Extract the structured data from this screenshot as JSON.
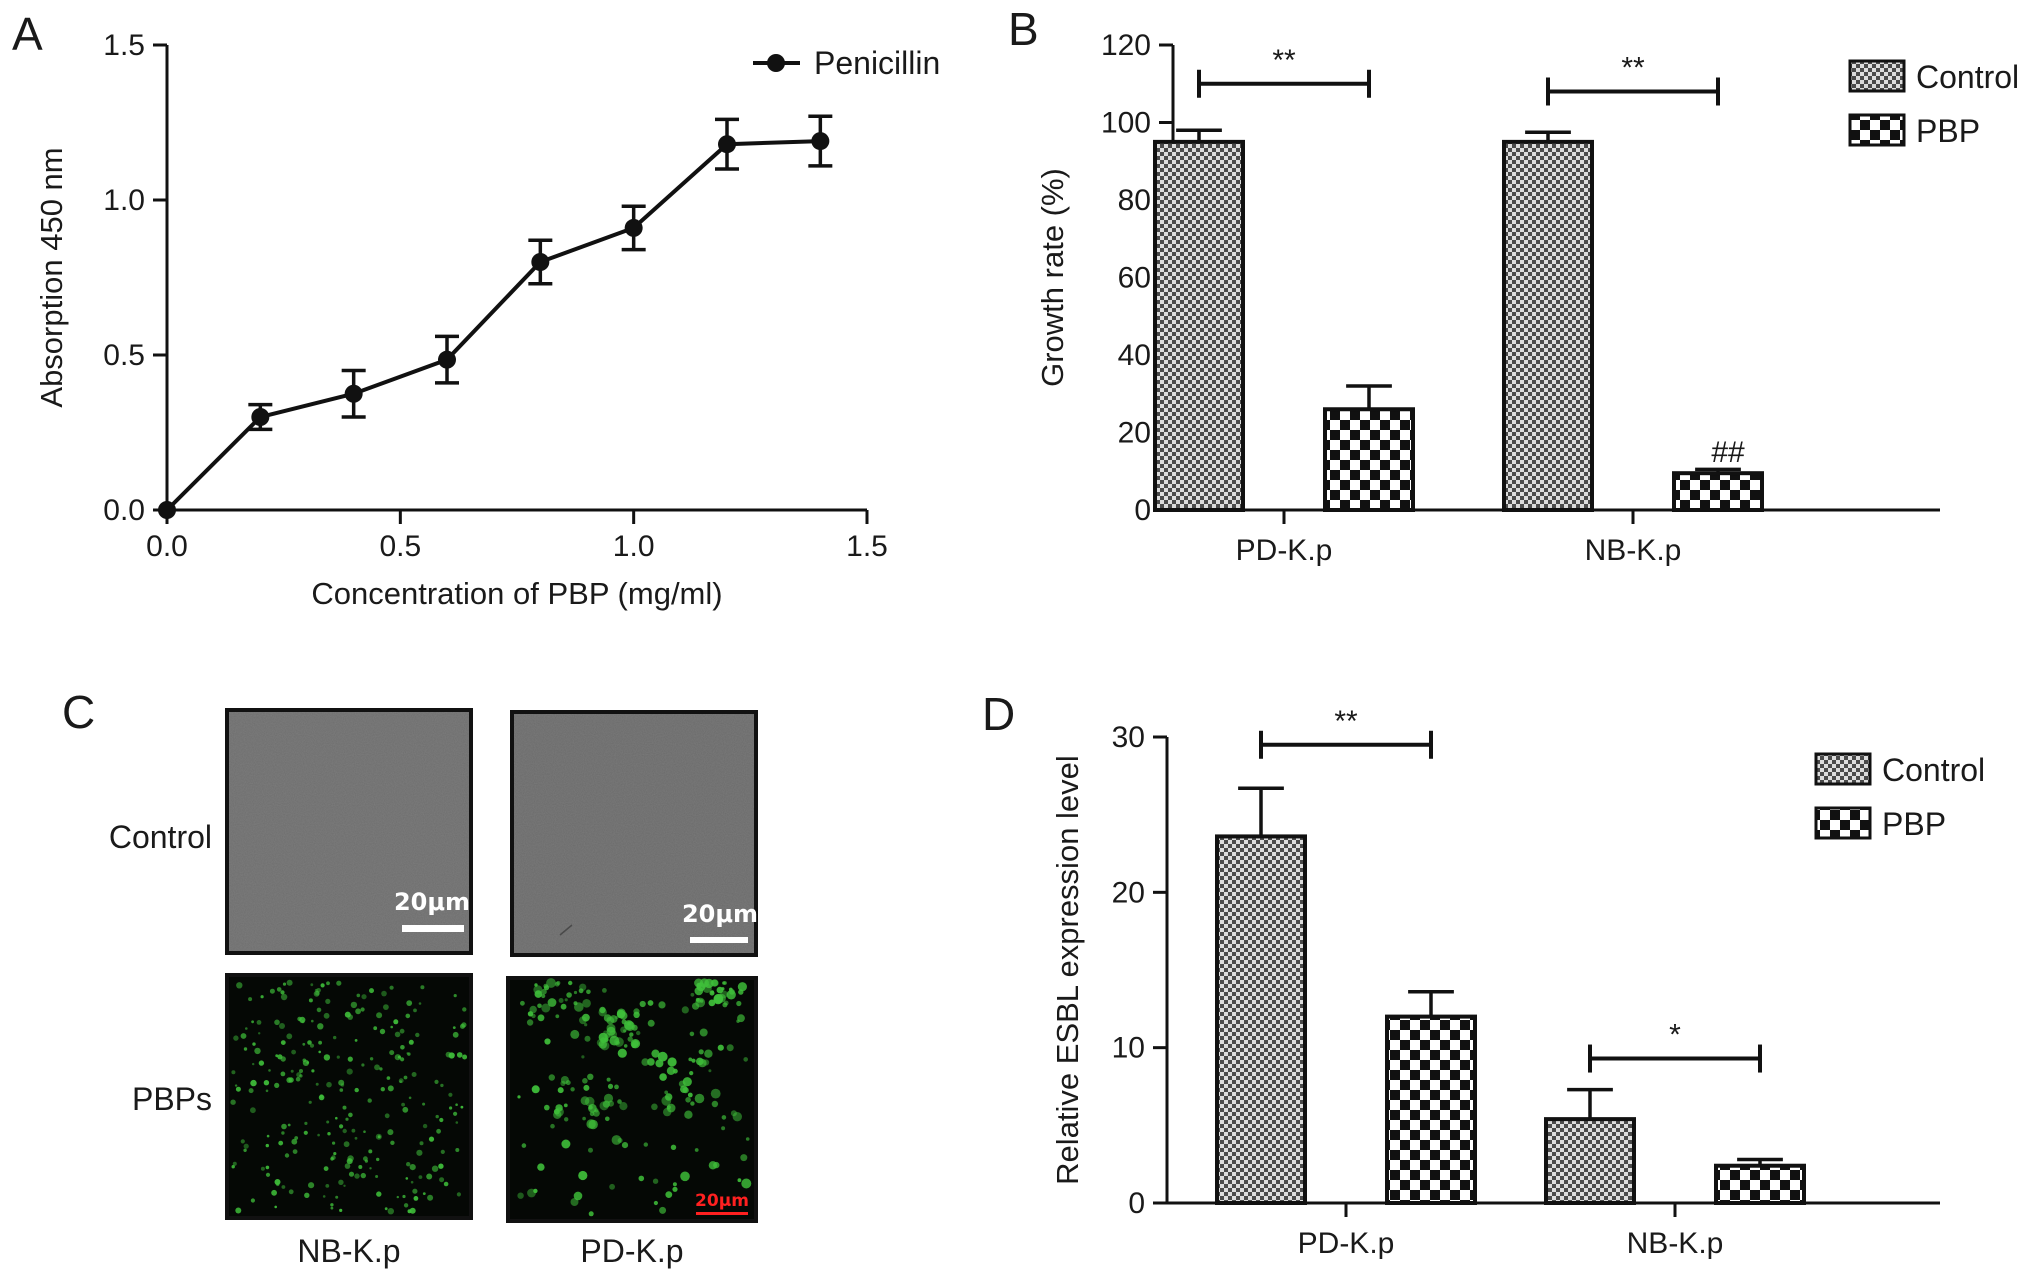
{
  "panel_letters": {
    "a": "A",
    "b": "B",
    "c": "C",
    "d": "D"
  },
  "micrograph_panel": {
    "row_labels": [
      "Control",
      "PBPs"
    ],
    "column_labels": [
      "NB-K.p",
      "PD-K.p"
    ],
    "scale_bar_labels": [
      "20μm",
      "20μm",
      "20μm"
    ]
  },
  "colors": {
    "line": "#111111",
    "control_fill": "#8a8a8a",
    "pbp_fill": "checker",
    "fluorescence": "#3fbf3a",
    "brightfield": "#6b6b6b"
  },
  "chart_data": [
    {
      "panel": "A",
      "type": "line",
      "title": "",
      "xlabel": "Concentration of PBP (mg/ml)",
      "ylabel": "Absorption 450 nm",
      "xlim": [
        0,
        1.5
      ],
      "ylim": [
        0,
        1.5
      ],
      "xticks": [
        "0.0",
        "0.5",
        "1.0",
        "1.5"
      ],
      "yticks": [
        "0.0",
        "0.5",
        "1.0",
        "1.5"
      ],
      "legend_position": "top-right",
      "series": [
        {
          "name": "Penicillin",
          "x": [
            0,
            0.2,
            0.4,
            0.6,
            0.8,
            1.0,
            1.2,
            1.4
          ],
          "y": [
            0,
            0.3,
            0.375,
            0.485,
            0.8,
            0.91,
            1.18,
            1.19
          ],
          "error": [
            0,
            0.04,
            0.075,
            0.075,
            0.07,
            0.07,
            0.08,
            0.08
          ]
        }
      ]
    },
    {
      "panel": "B",
      "type": "bar",
      "title": "",
      "xlabel": "",
      "ylabel": "Growth rate (%)",
      "ylim": [
        0,
        120
      ],
      "yticks": [
        "0",
        "20",
        "40",
        "60",
        "80",
        "100",
        "120"
      ],
      "categories": [
        "PD-K.p",
        "NB-K.p"
      ],
      "legend_position": "top-right",
      "series": [
        {
          "name": "Control",
          "values": [
            95,
            95
          ],
          "error": [
            3,
            2.5
          ]
        },
        {
          "name": "PBP",
          "values": [
            26,
            9.5
          ],
          "error": [
            6,
            1
          ]
        }
      ],
      "annotations": [
        {
          "text": "**",
          "category": 0,
          "type": "bracket",
          "level": 110
        },
        {
          "text": "**",
          "category": 1,
          "type": "bracket",
          "level": 108
        },
        {
          "text": "##",
          "category": 1,
          "series": 1,
          "type": "label",
          "level": 15
        }
      ]
    },
    {
      "panel": "D",
      "type": "bar",
      "title": "",
      "xlabel": "",
      "ylabel": "Relative ESBL expression level",
      "ylim": [
        0,
        30
      ],
      "yticks": [
        "0",
        "10",
        "20",
        "30"
      ],
      "categories": [
        "PD-K.p",
        "NB-K.p"
      ],
      "legend_position": "top-right",
      "series": [
        {
          "name": "Control",
          "values": [
            23.6,
            5.4
          ],
          "error": [
            3.1,
            1.9
          ]
        },
        {
          "name": "PBP",
          "values": [
            12,
            2.4
          ],
          "error": [
            1.6,
            0.4
          ]
        }
      ],
      "annotations": [
        {
          "text": "**",
          "category": 0,
          "type": "bracket",
          "level": 29.5
        },
        {
          "text": "*",
          "category": 1,
          "type": "bracket",
          "level": 9.3
        }
      ]
    }
  ]
}
